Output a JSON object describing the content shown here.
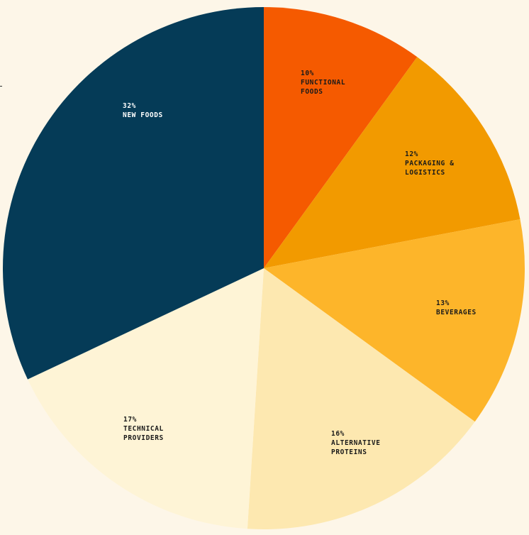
{
  "chart_data": {
    "type": "pie",
    "start_angle_deg": 0,
    "direction": "clockwise",
    "slices": [
      {
        "key": "functional-foods",
        "value": 10,
        "label_pct": "10%",
        "label_lines": [
          "FUNCTIONAL",
          "FOODS"
        ],
        "color": "#f55a00",
        "text_color": "#1a1a1a"
      },
      {
        "key": "packaging-logistics",
        "value": 12,
        "label_pct": "12%",
        "label_lines": [
          "PACKAGING &",
          "LOGISTICS"
        ],
        "color": "#f29a00",
        "text_color": "#1a1a1a"
      },
      {
        "key": "beverages",
        "value": 13,
        "label_pct": "13%",
        "label_lines": [
          "BEVERAGES"
        ],
        "color": "#fdb52a",
        "text_color": "#1a1a1a"
      },
      {
        "key": "alternative-proteins",
        "value": 16,
        "label_pct": "16%",
        "label_lines": [
          "ALTERNATIVE",
          "PROTEINS"
        ],
        "color": "#fde8b0",
        "text_color": "#1a1a1a"
      },
      {
        "key": "technical-providers",
        "value": 17,
        "label_pct": "17%",
        "label_lines": [
          "TECHNICAL",
          "PROVIDERS"
        ],
        "color": "#fef4d6",
        "text_color": "#1a1a1a"
      },
      {
        "key": "new-foods",
        "value": 32,
        "label_pct": "32%",
        "label_lines": [
          "NEW FOODS"
        ],
        "color": "#053b57",
        "text_color": "#ffffff"
      }
    ]
  }
}
